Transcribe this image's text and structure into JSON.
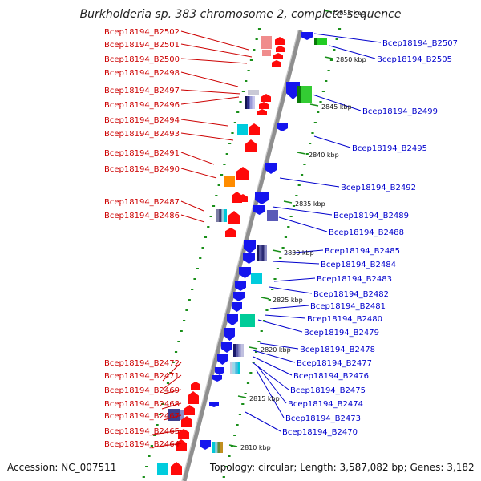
{
  "title": "Burkholderia sp. 383 chromosome 2, complete sequence",
  "accession": "Accession: NC_007511",
  "topology": "Topology: circular; Length: 3,587,082 bp; Genes: 3,182",
  "colors": {
    "backbone": "#8f8f8f",
    "dots": "#1a8f1a",
    "forward_label": "#cc0000",
    "reverse_label": "#0000cc"
  },
  "scale_labels": [
    "2855 kbp",
    "2850 kbp",
    "2845 kbp",
    "2840 kbp",
    "2835 kbp",
    "2830 kbp",
    "2825 kbp",
    "2820 kbp",
    "2815 kbp",
    "2810 kbp"
  ],
  "forward_genes": [
    "Bcep18194_B2502",
    "Bcep18194_B2501",
    "Bcep18194_B2500",
    "Bcep18194_B2498",
    "Bcep18194_B2497",
    "Bcep18194_B2496",
    "Bcep18194_B2494",
    "Bcep18194_B2493",
    "Bcep18194_B2491",
    "Bcep18194_B2490",
    "Bcep18194_B2487",
    "Bcep18194_B2486",
    "Bcep18194_B2472",
    "Bcep18194_B2471",
    "Bcep18194_B2469",
    "Bcep18194_B2468",
    "Bcep18194_B2467",
    "Bcep18194_B2465",
    "Bcep18194_B2464"
  ],
  "reverse_genes": [
    "Bcep18194_B2507",
    "Bcep18194_B2505",
    "Bcep18194_B2499",
    "Bcep18194_B2495",
    "Bcep18194_B2492",
    "Bcep18194_B2489",
    "Bcep18194_B2488",
    "Bcep18194_B2485",
    "Bcep18194_B2484",
    "Bcep18194_B2483",
    "Bcep18194_B2482",
    "Bcep18194_B2481",
    "Bcep18194_B2480",
    "Bcep18194_B2479",
    "Bcep18194_B2478",
    "Bcep18194_B2477",
    "Bcep18194_B2476",
    "Bcep18194_B2475",
    "Bcep18194_B2474",
    "Bcep18194_B2473",
    "Bcep18194_B2470"
  ]
}
